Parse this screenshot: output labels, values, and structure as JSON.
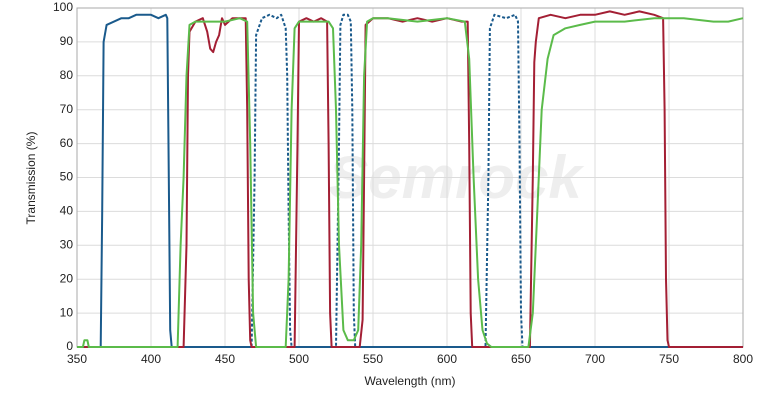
{
  "chart_data": {
    "type": "line",
    "x_label": "Wavelength (nm)",
    "y_label": "Transmission (%)",
    "watermark": "Semrock",
    "xlim": [
      350,
      800
    ],
    "xticks": [
      350,
      400,
      450,
      500,
      550,
      600,
      650,
      700,
      750,
      800
    ],
    "ylim": [
      0,
      100
    ],
    "yticks": [
      0,
      10,
      20,
      30,
      40,
      50,
      60,
      70,
      80,
      90,
      100
    ],
    "grid": true,
    "series": [
      {
        "color": "#1a5a8c",
        "dash": false,
        "x": [
          350,
          366,
          367,
          368,
          370,
          375,
          380,
          385,
          390,
          395,
          400,
          405,
          410,
          411,
          412,
          413,
          414,
          800
        ],
        "values": [
          0,
          0,
          40,
          90,
          95,
          96,
          97,
          97,
          98,
          98,
          98,
          97,
          98,
          97,
          50,
          5,
          0,
          0
        ]
      },
      {
        "color": "#1a5a8c",
        "dash": true,
        "x": [
          350,
          468,
          470,
          471,
          475,
          480,
          485,
          488,
          491,
          492,
          493,
          494,
          495,
          525,
          527,
          528,
          530,
          533,
          535,
          536,
          537,
          538,
          626,
          628,
          629,
          632,
          640,
          646,
          648,
          649,
          650,
          651,
          800
        ],
        "values": [
          0,
          0,
          50,
          92,
          97,
          98,
          97,
          98,
          94,
          80,
          40,
          5,
          0,
          0,
          60,
          95,
          98,
          98,
          96,
          70,
          10,
          0,
          0,
          50,
          94,
          98,
          97,
          98,
          96,
          60,
          10,
          0,
          0
        ]
      },
      {
        "color": "#a31f34",
        "dash": false,
        "x": [
          350,
          422,
          424,
          425,
          426,
          430,
          435,
          438,
          440,
          442,
          444,
          446,
          448,
          450,
          455,
          460,
          464,
          465,
          466,
          467,
          468,
          497,
          499,
          500,
          505,
          510,
          515,
          519,
          520,
          521,
          522,
          541,
          543,
          544,
          545,
          550,
          560,
          570,
          580,
          590,
          600,
          610,
          614,
          615,
          616,
          617,
          656,
          658,
          659,
          660,
          662,
          670,
          680,
          690,
          700,
          710,
          720,
          730,
          740,
          746,
          747,
          748,
          749,
          750,
          800
        ],
        "values": [
          0,
          0,
          30,
          80,
          93,
          96,
          97,
          93,
          88,
          87,
          90,
          92,
          97,
          95,
          97,
          97,
          97,
          70,
          20,
          2,
          0,
          0,
          60,
          96,
          97,
          96,
          97,
          96,
          60,
          10,
          0,
          0,
          8,
          50,
          95,
          97,
          97,
          96,
          97,
          96,
          97,
          96,
          96,
          60,
          10,
          0,
          0,
          50,
          84,
          90,
          97,
          98,
          97,
          98,
          98,
          99,
          98,
          99,
          98,
          97,
          70,
          20,
          2,
          0,
          0
        ]
      },
      {
        "color": "#5bbb4a",
        "dash": false,
        "x": [
          350,
          354,
          355,
          357,
          358,
          418,
          420,
          422,
          424,
          426,
          430,
          440,
          450,
          460,
          465,
          467,
          469,
          471,
          491,
          493,
          495,
          497,
          500,
          510,
          520,
          523,
          525,
          527,
          530,
          533,
          537,
          540,
          542,
          544,
          546,
          550,
          560,
          580,
          600,
          612,
          615,
          618,
          621,
          624,
          627,
          630,
          655,
          658,
          661,
          664,
          668,
          672,
          680,
          690,
          700,
          720,
          740,
          760,
          780,
          790,
          800
        ],
        "values": [
          0,
          0,
          2,
          2,
          0,
          0,
          30,
          50,
          80,
          95,
          96,
          96,
          96,
          97,
          96,
          60,
          10,
          0,
          0,
          20,
          70,
          94,
          96,
          96,
          96,
          94,
          70,
          30,
          5,
          2,
          2,
          5,
          30,
          80,
          96,
          97,
          97,
          96,
          97,
          96,
          85,
          50,
          20,
          5,
          1,
          0,
          0,
          10,
          40,
          70,
          85,
          92,
          94,
          95,
          96,
          96,
          97,
          97,
          96,
          96,
          97
        ]
      }
    ]
  }
}
